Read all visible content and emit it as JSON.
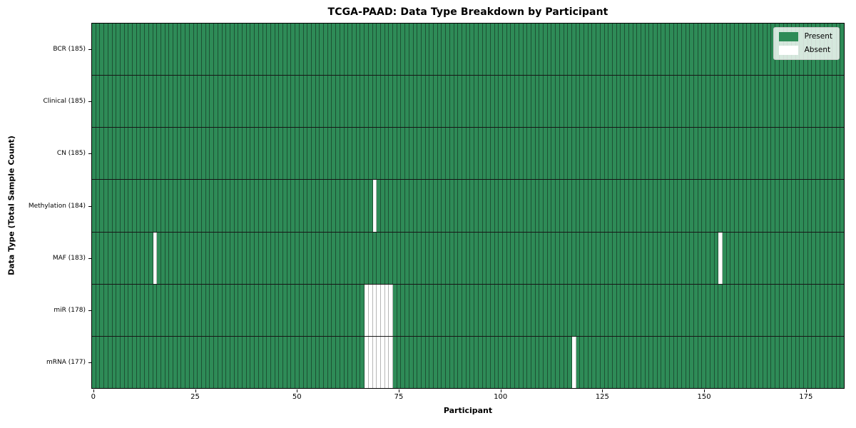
{
  "colors": {
    "present": "#2e8b57",
    "absent": "#ffffff",
    "bar_edge": "#1d5234",
    "absent_edge": "#b5b5b5",
    "row_divider": "#161616",
    "axis": "#000000",
    "legend_bg": "rgba(255,255,255,0.8)",
    "legend_border": "#cccccc"
  },
  "legend": {
    "position": "upper right",
    "items": [
      {
        "label": "Present",
        "color": "#2e8b57"
      },
      {
        "label": "Absent",
        "color": "#ffffff"
      }
    ]
  },
  "chart_data": {
    "type": "heatmap",
    "title": "TCGA-PAAD: Data Type Breakdown by Participant",
    "xlabel": "Participant",
    "ylabel": "Data Type (Total Sample Count)",
    "n_participants": 185,
    "x_ticks": [
      0,
      25,
      50,
      75,
      100,
      125,
      150,
      175
    ],
    "x_range": [
      0,
      185
    ],
    "grid": false,
    "cell_states": [
      "Present",
      "Absent"
    ],
    "rows": [
      {
        "data_type": "BCR",
        "label": "BCR (185)",
        "total_count": 185,
        "absent_participants": []
      },
      {
        "data_type": "Clinical",
        "label": "Clinical (185)",
        "total_count": 185,
        "absent_participants": []
      },
      {
        "data_type": "CN",
        "label": "CN (185)",
        "total_count": 185,
        "absent_participants": []
      },
      {
        "data_type": "Methylation",
        "label": "Methylation (184)",
        "total_count": 184,
        "absent_participants": [
          69
        ]
      },
      {
        "data_type": "MAF",
        "label": "MAF (183)",
        "total_count": 183,
        "absent_participants": [
          15,
          154
        ]
      },
      {
        "data_type": "miR",
        "label": "miR (178)",
        "total_count": 178,
        "absent_participants": [
          67,
          68,
          69,
          70,
          71,
          72,
          73
        ]
      },
      {
        "data_type": "mRNA",
        "label": "mRNA (177)",
        "total_count": 177,
        "absent_participants": [
          67,
          68,
          69,
          70,
          71,
          72,
          73,
          118
        ]
      }
    ]
  }
}
